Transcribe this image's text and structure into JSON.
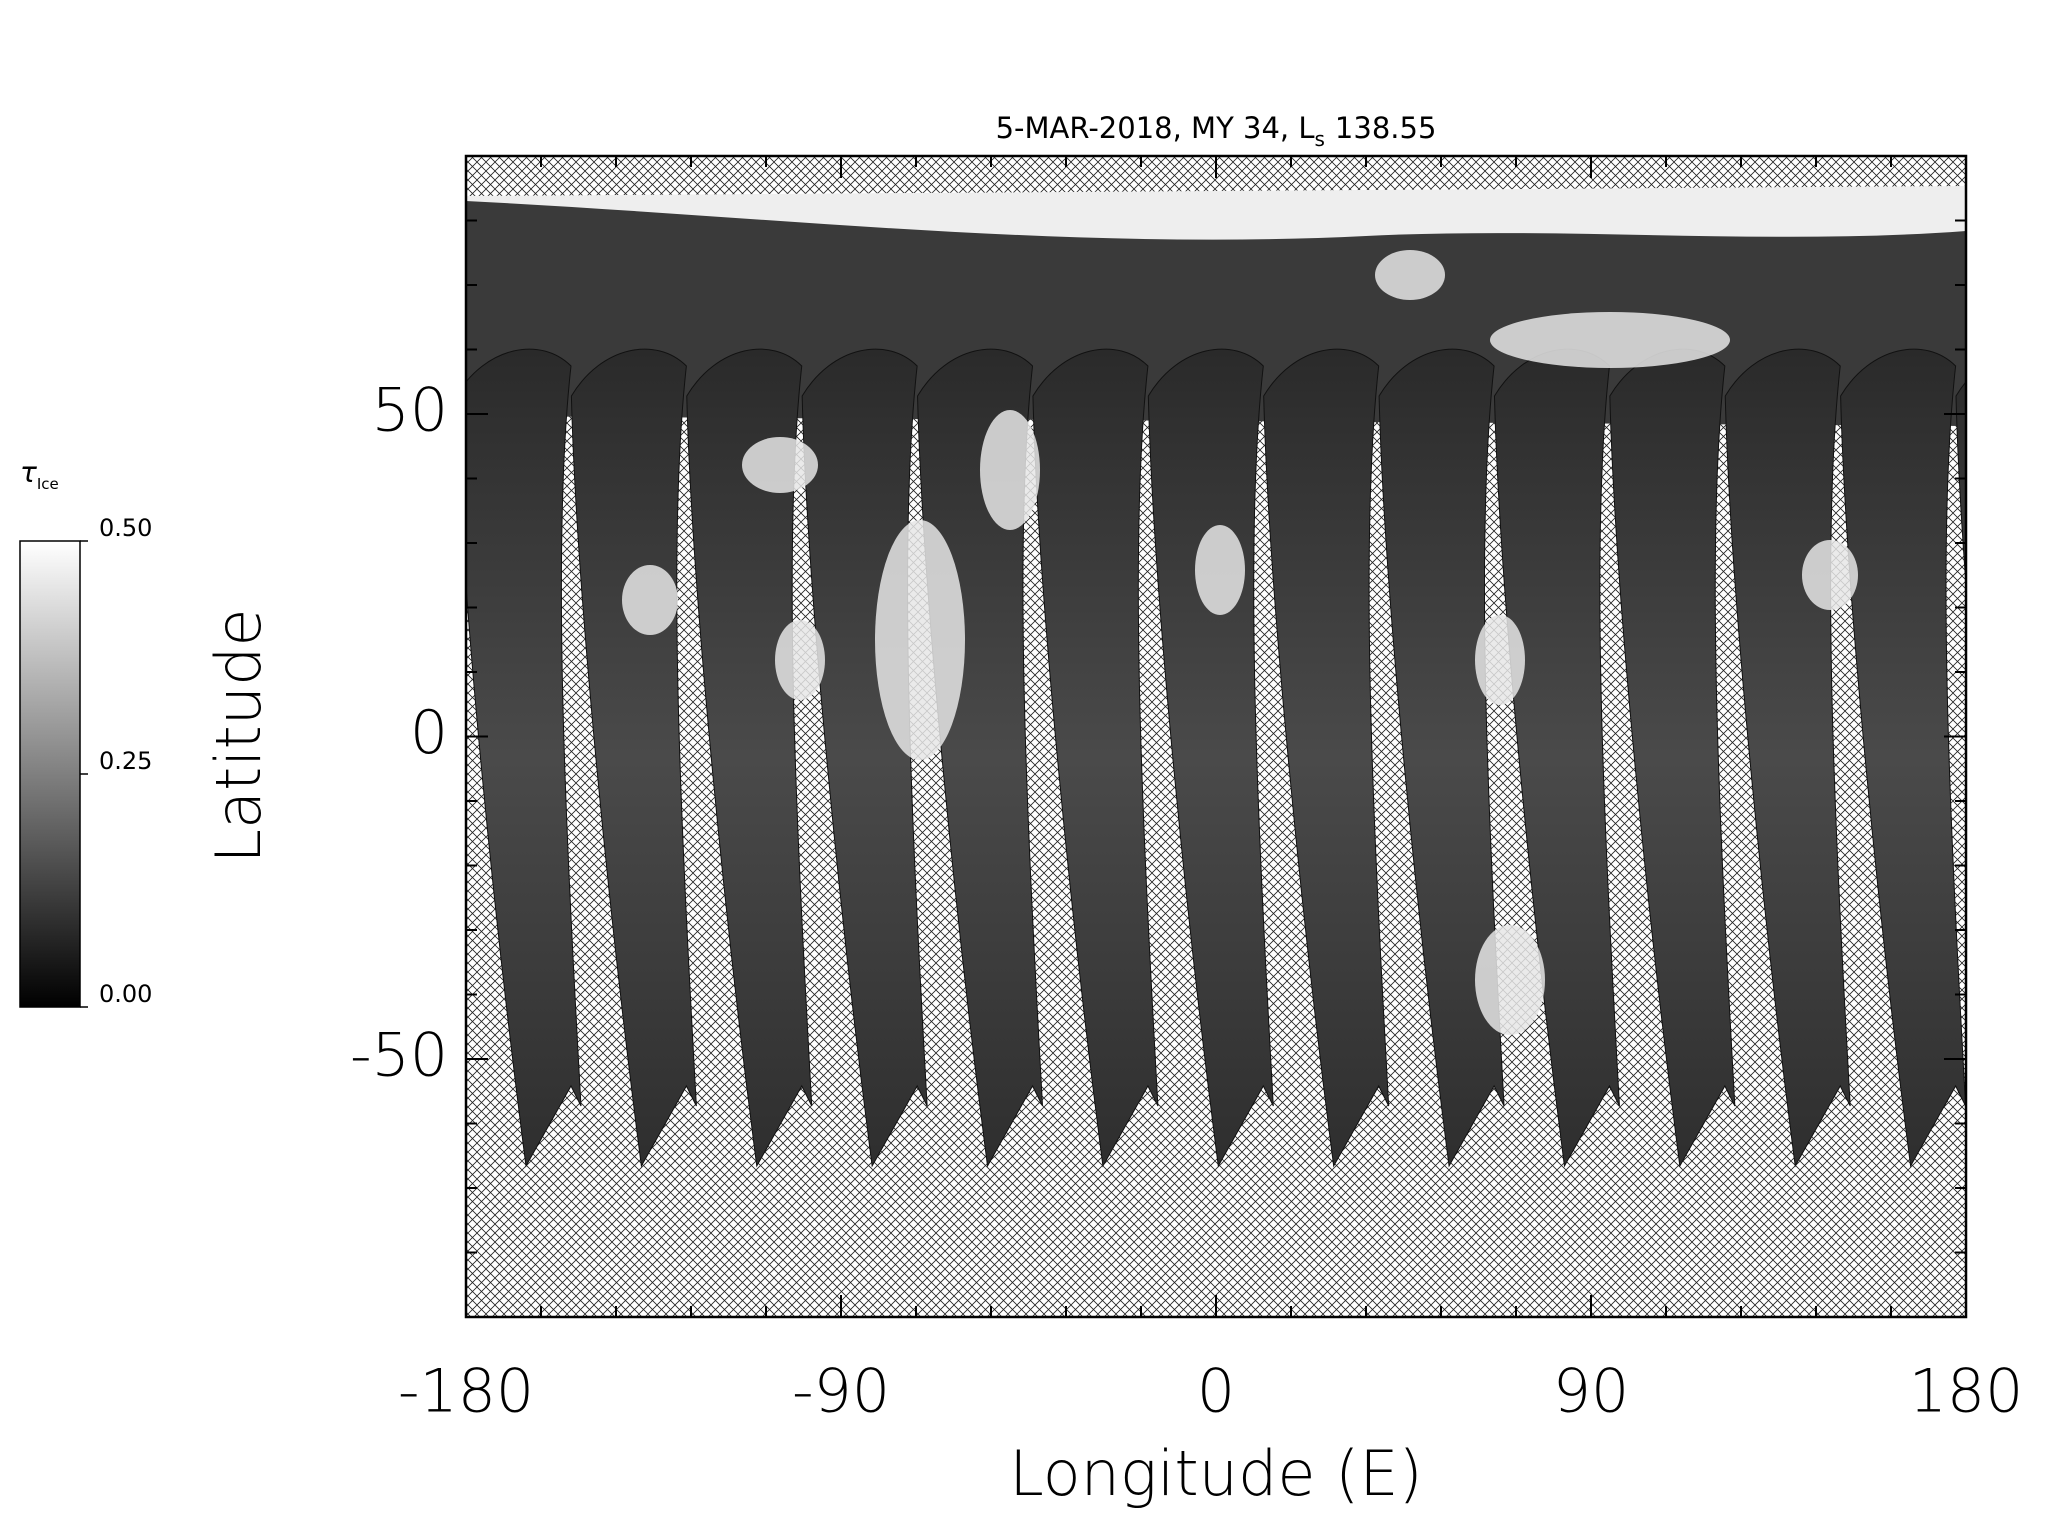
{
  "chart_data": {
    "type": "swath_map",
    "title": {
      "text": "5-MAR-2018, MY 34,  L",
      "subscript": "s",
      "suffix": "138.55"
    },
    "xlabel": "Longitude (E)",
    "ylabel": "Latitude",
    "xlim": [
      -180,
      180
    ],
    "ylim": [
      -90,
      90
    ],
    "xticks": [
      -180,
      -90,
      0,
      90,
      180
    ],
    "yticks": [
      -50,
      0,
      50
    ],
    "xticks_minor": [
      -162,
      -144,
      -126,
      -108,
      -72,
      -54,
      -36,
      -18,
      18,
      36,
      54,
      72,
      108,
      126,
      144,
      162
    ],
    "yticks_minor": [
      -80,
      -70,
      -60,
      -40,
      -30,
      -20,
      -10,
      10,
      20,
      30,
      40,
      60,
      70,
      80
    ],
    "fill_pattern": "crosshatch",
    "colorbar": {
      "label": "τ",
      "label_subscript": "Ice",
      "colormap": "gray",
      "lim": [
        0,
        0.5
      ],
      "ticks": [
        {
          "value": 0,
          "label": "0.00"
        },
        {
          "value": 0.25,
          "label": "0.25"
        },
        {
          "value": 0.5,
          "label": "0.50"
        }
      ]
    }
  }
}
